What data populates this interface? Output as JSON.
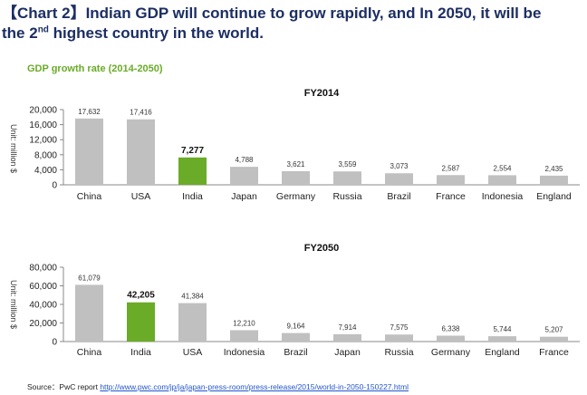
{
  "header": {
    "title_line1": "【Chart 2】Indian GDP will continue to grow rapidly, and In 2050, it will be",
    "title_line2_pre": "the 2",
    "title_line2_sup": "nd",
    "title_line2_post": " highest country in the world."
  },
  "subtitle": "GDP growth rate (2014-2050)",
  "source": {
    "label": "Source：PwC report",
    "url_text": "http://www.pwc.com/jp/ja/japan-press-room/press-release/2015/world-in-2050-150227.html"
  },
  "colors": {
    "bar": "#c0c0c0",
    "highlight": "#6aab28",
    "title": "#1c2e63"
  },
  "chart_data": [
    {
      "type": "bar",
      "title": "FY2014",
      "ylabel": "Unit: million $",
      "ylim": [
        0,
        20000
      ],
      "yticks": [
        "0",
        "4,000",
        "8,000",
        "12,000",
        "16,000",
        "20,000"
      ],
      "categories": [
        "China",
        "USA",
        "India",
        "Japan",
        "Germany",
        "Russia",
        "Brazil",
        "France",
        "Indonesia",
        "England"
      ],
      "values": [
        17632,
        17416,
        7277,
        4788,
        3621,
        3559,
        3073,
        2587,
        2554,
        2435
      ],
      "value_labels": [
        "17,632",
        "17,416",
        "7,277",
        "4,788",
        "3,621",
        "3,559",
        "3,073",
        "2,587",
        "2,554",
        "2,435"
      ],
      "highlight": "India"
    },
    {
      "type": "bar",
      "title": "FY2050",
      "ylabel": "Unit: million $",
      "ylim": [
        0,
        80000
      ],
      "yticks": [
        "0",
        "20,000",
        "40,000",
        "60,000",
        "80,000"
      ],
      "categories": [
        "China",
        "India",
        "USA",
        "Indonesia",
        "Brazil",
        "Japan",
        "Russia",
        "Germany",
        "England",
        "France"
      ],
      "values": [
        61079,
        42205,
        41384,
        12210,
        9164,
        7914,
        7575,
        6338,
        5744,
        5207
      ],
      "value_labels": [
        "61,079",
        "42,205",
        "41,384",
        "12,210",
        "9,164",
        "7,914",
        "7,575",
        "6,338",
        "5,744",
        "5,207"
      ],
      "highlight": "India"
    }
  ]
}
